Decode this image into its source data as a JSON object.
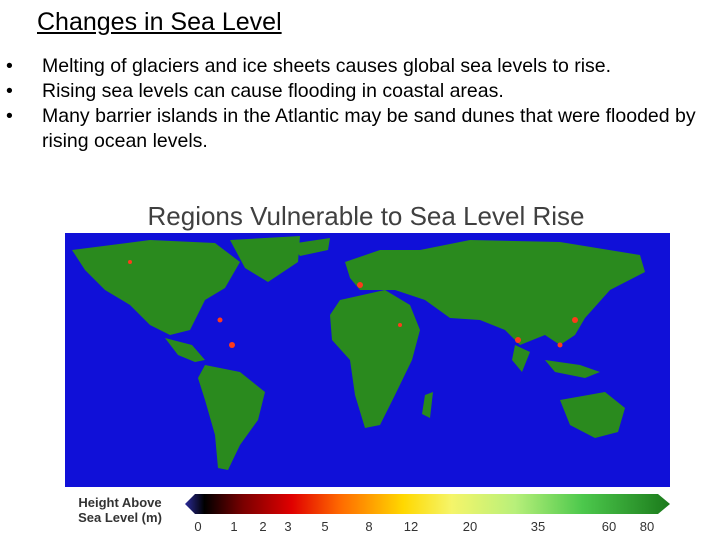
{
  "header": {
    "title": "Changes in Sea Level"
  },
  "bullets": [
    "Melting of glaciers and ice sheets causes global sea levels to rise.",
    "Rising sea levels can cause flooding in coastal areas.",
    "Many barrier islands in the Atlantic may be sand dunes that were flooded by rising ocean levels."
  ],
  "figure": {
    "title": "Regions Vulnerable to Sea Level Rise",
    "legend": {
      "label_lines": [
        "Height Above",
        "Sea Level (m)"
      ],
      "ticks": [
        0,
        1,
        2,
        3,
        5,
        8,
        12,
        20,
        35,
        60,
        80
      ]
    }
  }
}
